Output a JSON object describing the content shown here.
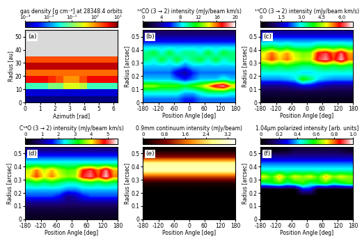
{
  "chart_data": [
    {
      "type": "heatmap",
      "panel_label": "(a)",
      "log": true,
      "colorbar_label": "gas density [g cm⁻²] at 28348.4 orbits",
      "xlabel": "Azimuth [rad]",
      "ylabel": "Radius [au]",
      "xlim": [
        0,
        6.283
      ],
      "ylim": [
        0,
        55
      ],
      "xticks": [
        0,
        1,
        2,
        3,
        4,
        5,
        6
      ],
      "yticks": [
        0,
        10,
        20,
        30,
        40,
        50
      ],
      "clim": [
        0.001,
        10
      ],
      "cticks": [
        {
          "value": 0.001,
          "label": "10⁻³"
        },
        {
          "value": 0.01,
          "label": "10⁻²"
        },
        {
          "value": 0.1,
          "label": "10⁻¹"
        },
        {
          "value": 1,
          "label": "10⁰"
        },
        {
          "value": 10,
          "label": "10¹"
        }
      ],
      "cells": [
        [
          0.001,
          0.001,
          0.001,
          0.001,
          0.001,
          0.001,
          0.001,
          0.001,
          0.001,
          0.001,
          0.001,
          0.001
        ],
        [
          0.002,
          0.002,
          0.002,
          0.002,
          0.002,
          0.002,
          0.002,
          0.002,
          0.002,
          0.002,
          0.002,
          0.002
        ],
        [
          0.05,
          0.05,
          0.05,
          0.1,
          0.1,
          0.3,
          0.3,
          0.2,
          0.05,
          0.05,
          0.05,
          0.05
        ],
        [
          4,
          4,
          4,
          3,
          2,
          1,
          1,
          2,
          4,
          4,
          4,
          4
        ],
        [
          1.5,
          1.5,
          1.5,
          1.5,
          1.5,
          1.5,
          1.5,
          1.5,
          1.5,
          1.5,
          1.5,
          1.5
        ],
        [
          6,
          6,
          6,
          6,
          6,
          6,
          6,
          6,
          6,
          6,
          6,
          6
        ],
        [
          2,
          2,
          2,
          2,
          2,
          2,
          2,
          2,
          2,
          2,
          2,
          2
        ],
        [
          null,
          null,
          null,
          null,
          null,
          null,
          null,
          null,
          null,
          null,
          null,
          null
        ],
        [
          null,
          null,
          null,
          null,
          null,
          null,
          null,
          null,
          null,
          null,
          null,
          null
        ],
        [
          null,
          null,
          null,
          null,
          null,
          null,
          null,
          null,
          null,
          null,
          null,
          null
        ],
        [
          null,
          null,
          null,
          null,
          null,
          null,
          null,
          null,
          null,
          null,
          null,
          null
        ]
      ]
    },
    {
      "type": "heatmap",
      "panel_label": "(b)",
      "colorbar_label": "¹²CO (3 → 2) intensity (mJy/beam km/s)",
      "xlabel": "Position Angle [deg]",
      "ylabel": "Radius [arcsec]",
      "xlim": [
        -180,
        180
      ],
      "ylim": [
        0,
        0.55
      ],
      "xticks": [
        -180,
        -120,
        -60,
        0,
        60,
        120,
        180
      ],
      "yticks": [
        0,
        0.1,
        0.2,
        0.3,
        0.4,
        0.5
      ],
      "clim": [
        0,
        20
      ],
      "cticks": [
        0,
        4,
        8,
        12,
        16,
        20
      ],
      "cells": [
        [
          7,
          7,
          7,
          7,
          7,
          6,
          6,
          7,
          7,
          7,
          7,
          7
        ],
        [
          9,
          9,
          9,
          9,
          9,
          8,
          8,
          9,
          10,
          10,
          10,
          9
        ],
        [
          13,
          13,
          12,
          12,
          12,
          11,
          12,
          13,
          15,
          18,
          19,
          15
        ],
        [
          8,
          8,
          8,
          8,
          7,
          6,
          7,
          8,
          8,
          8,
          9,
          8
        ],
        [
          7,
          7,
          7,
          7,
          5,
          4,
          6,
          7,
          7,
          7,
          7,
          7
        ],
        [
          8,
          8,
          8,
          8,
          8,
          7,
          8,
          8,
          8,
          8,
          8,
          8
        ],
        [
          10,
          9,
          11,
          9,
          11,
          9,
          10,
          11,
          9,
          11,
          9,
          10
        ],
        [
          10,
          11,
          9,
          11,
          9,
          10,
          10,
          9,
          11,
          9,
          11,
          10
        ],
        [
          8,
          8,
          8,
          8,
          8,
          8,
          8,
          8,
          8,
          8,
          8,
          8
        ],
        [
          5,
          5,
          5,
          5,
          5,
          5,
          5,
          5,
          5,
          5,
          5,
          5
        ],
        [
          3,
          3,
          3,
          3,
          3,
          3,
          3,
          3,
          3,
          3,
          3,
          3
        ]
      ]
    },
    {
      "type": "heatmap",
      "panel_label": "(c)",
      "colorbar_label": "¹³CO (3 → 2) intensity (mJy/beam km/s)",
      "xlabel": "Position Angle [deg]",
      "ylabel": "Radius [arcsec]",
      "xlim": [
        -180,
        180
      ],
      "ylim": [
        0,
        0.55
      ],
      "xticks": [
        -180,
        -120,
        -60,
        0,
        60,
        120,
        180
      ],
      "yticks": [
        0,
        0.1,
        0.2,
        0.3,
        0.4,
        0.5
      ],
      "clim": [
        0,
        6.8
      ],
      "cticks": [
        0,
        1.5,
        {
          "value": 3,
          "label": "3.0"
        },
        4.5,
        {
          "value": 6,
          "label": "6.0"
        }
      ],
      "cells": [
        [
          0.3,
          0.3,
          0.3,
          0.3,
          0.3,
          0.3,
          0.3,
          0.3,
          0.3,
          0.3,
          0.3,
          0.3
        ],
        [
          0.6,
          0.6,
          0.6,
          0.6,
          0.6,
          0.6,
          0.6,
          0.6,
          0.6,
          0.6,
          0.6,
          0.6
        ],
        [
          1.2,
          1.2,
          1.2,
          1.3,
          1.5,
          1.8,
          1.8,
          1.5,
          1.3,
          1.2,
          1.2,
          1.2
        ],
        [
          2.5,
          2.5,
          2.5,
          2.6,
          2.8,
          4.0,
          3.5,
          2.8,
          2.6,
          2.5,
          2.5,
          2.5
        ],
        [
          3.0,
          3.0,
          3.0,
          3.0,
          3.0,
          2.8,
          2.8,
          3.0,
          3.0,
          3.0,
          3.0,
          3.0
        ],
        [
          3.6,
          3.8,
          3.6,
          3.8,
          3.6,
          3.4,
          3.4,
          3.6,
          3.8,
          3.6,
          3.8,
          3.6
        ],
        [
          5.0,
          5.6,
          5.0,
          5.4,
          4.8,
          4.5,
          4.6,
          6.0,
          6.4,
          5.6,
          6.5,
          5.4
        ],
        [
          4.8,
          5.4,
          4.8,
          5.2,
          4.6,
          4.3,
          4.4,
          5.8,
          6.1,
          5.4,
          6.2,
          5.2
        ],
        [
          3.4,
          3.6,
          3.3,
          3.5,
          3.2,
          3.2,
          3.2,
          3.6,
          3.6,
          3.5,
          3.6,
          3.4
        ],
        [
          2.4,
          2.4,
          2.4,
          2.4,
          2.4,
          2.4,
          2.4,
          2.4,
          2.4,
          2.4,
          2.4,
          2.4
        ],
        [
          1.4,
          1.4,
          1.4,
          1.4,
          1.4,
          1.4,
          1.4,
          1.4,
          1.4,
          1.4,
          1.4,
          1.4
        ]
      ]
    },
    {
      "type": "heatmap",
      "panel_label": "(d)",
      "colorbar_label": "C¹⁸O (3 → 2) intensity (mJy/beam km/s)",
      "xlabel": "Position Angle [deg]",
      "ylabel": "Radius [arcsec]",
      "xlim": [
        -180,
        180
      ],
      "ylim": [
        0,
        0.55
      ],
      "xticks": [
        -180,
        -120,
        -60,
        0,
        60,
        120,
        180
      ],
      "yticks": [
        0,
        0.1,
        0.2,
        0.3,
        0.4,
        0.5
      ],
      "clim": [
        0,
        5.6
      ],
      "cticks": [
        0,
        1,
        2,
        3,
        4,
        5
      ],
      "cells": [
        [
          0.3,
          0.3,
          0.3,
          0.3,
          0.3,
          0.3,
          0.3,
          0.3,
          0.3,
          0.3,
          0.3,
          0.3
        ],
        [
          0.5,
          0.5,
          0.5,
          0.5,
          0.5,
          0.5,
          0.5,
          0.5,
          0.5,
          0.5,
          0.5,
          0.5
        ],
        [
          1.0,
          1.0,
          1.0,
          1.0,
          1.0,
          0.9,
          0.9,
          1.0,
          1.0,
          1.0,
          1.0,
          1.0
        ],
        [
          1.8,
          1.8,
          1.8,
          1.8,
          1.6,
          1.0,
          1.2,
          1.6,
          1.8,
          1.8,
          1.8,
          1.8
        ],
        [
          2.2,
          2.2,
          2.2,
          2.2,
          2.2,
          2.0,
          2.0,
          2.2,
          2.2,
          2.2,
          2.2,
          2.2
        ],
        [
          2.8,
          3.0,
          2.8,
          3.0,
          2.8,
          2.6,
          2.6,
          2.8,
          3.0,
          2.8,
          3.0,
          2.8
        ],
        [
          4.0,
          4.6,
          4.0,
          4.4,
          3.9,
          3.6,
          3.7,
          4.9,
          5.2,
          4.6,
          5.4,
          4.4
        ],
        [
          3.8,
          4.4,
          3.8,
          4.2,
          3.7,
          3.4,
          3.5,
          4.7,
          5.0,
          4.4,
          5.2,
          4.2
        ],
        [
          2.6,
          2.6,
          2.6,
          2.6,
          2.6,
          2.6,
          2.6,
          2.6,
          2.6,
          2.6,
          2.6,
          2.6
        ],
        [
          1.8,
          1.8,
          1.8,
          1.8,
          1.8,
          1.8,
          1.8,
          1.8,
          1.8,
          1.8,
          1.8,
          1.8
        ],
        [
          1.0,
          1.0,
          1.0,
          1.0,
          1.0,
          1.0,
          1.0,
          1.0,
          1.0,
          1.0,
          1.0,
          1.0
        ]
      ]
    },
    {
      "type": "heatmap",
      "panel_label": "(e)",
      "colorbar_label": "0.9mm continuum intensity (mJy/beam)",
      "xlabel": "Position Angle [deg]",
      "ylabel": "Radius [arcsec]",
      "xlim": [
        -180,
        180
      ],
      "ylim": [
        0,
        0.55
      ],
      "xticks": [
        -180,
        -120,
        -60,
        0,
        60,
        120,
        180
      ],
      "yticks": [
        0,
        0.1,
        0.2,
        0.3,
        0.4,
        0.5
      ],
      "clim": [
        0,
        3.5
      ],
      "cticks": [
        0,
        0.8,
        1.6,
        2.4,
        3.2
      ],
      "cells": [
        [
          0,
          0,
          0,
          0,
          0,
          0,
          0,
          0,
          0,
          0,
          0,
          0
        ],
        [
          0,
          0,
          0,
          0,
          0,
          0,
          0,
          0,
          0,
          0,
          0,
          0
        ],
        [
          0,
          0,
          0,
          0,
          0,
          0,
          0,
          0,
          0,
          0,
          0,
          0
        ],
        [
          0,
          0,
          0,
          0,
          0,
          0,
          0,
          0,
          0,
          0,
          0,
          0
        ],
        [
          0.02,
          0.02,
          0.02,
          0.02,
          0.02,
          0.02,
          0.02,
          0.02,
          0.02,
          0.02,
          0.02,
          0.02
        ],
        [
          0.2,
          0.2,
          0.2,
          0.2,
          0.2,
          0.2,
          0.2,
          0.2,
          0.2,
          0.2,
          0.2,
          0.2
        ],
        [
          1.4,
          1.4,
          1.4,
          1.4,
          1.4,
          1.4,
          1.4,
          1.4,
          1.4,
          1.4,
          1.4,
          1.4
        ],
        [
          3.0,
          3.0,
          3.0,
          3.0,
          3.0,
          3.0,
          3.0,
          3.0,
          3.0,
          3.0,
          3.0,
          3.0
        ],
        [
          2.8,
          2.8,
          2.8,
          2.8,
          2.8,
          2.8,
          2.8,
          2.8,
          2.8,
          2.8,
          2.8,
          2.8
        ],
        [
          0.9,
          0.9,
          0.9,
          0.9,
          0.9,
          0.9,
          0.9,
          0.9,
          0.9,
          0.9,
          0.9,
          0.9
        ],
        [
          0.1,
          0.1,
          0.1,
          0.1,
          0.1,
          0.1,
          0.1,
          0.1,
          0.1,
          0.1,
          0.1,
          0.1
        ]
      ]
    },
    {
      "type": "heatmap",
      "panel_label": "(f)",
      "colorbar_label": "1.04μm polarized intensity [arb. units]",
      "xlabel": "Position Angle [deg]",
      "ylabel": "Radius [arcsec]",
      "xlim": [
        -180,
        180
      ],
      "ylim": [
        0,
        0.55
      ],
      "xticks": [
        -180,
        -120,
        -60,
        0,
        60,
        120,
        180
      ],
      "yticks": [
        0,
        0.1,
        0.2,
        0.3,
        0.4,
        0.5
      ],
      "clim": [
        0,
        1
      ],
      "cticks": [
        0,
        0.2,
        0.4,
        0.6,
        0.8,
        {
          "value": 1,
          "label": "1.0"
        }
      ],
      "cells": [
        [
          0,
          0,
          0,
          0,
          0,
          0,
          0,
          0,
          0,
          0,
          0,
          0
        ],
        [
          0,
          0,
          0,
          0,
          0,
          0,
          0,
          0,
          0,
          0,
          0,
          0
        ],
        [
          0,
          0,
          0,
          0,
          0,
          0,
          0,
          0,
          0,
          0,
          0,
          0
        ],
        [
          0,
          0,
          0,
          0,
          0,
          0,
          0,
          0,
          0,
          0,
          0,
          0
        ],
        [
          0,
          0,
          0,
          0,
          0,
          0.25,
          0.25,
          0,
          0,
          0,
          0,
          0
        ],
        [
          0.5,
          0.55,
          0.6,
          0.5,
          0.55,
          0.6,
          0.5,
          0.55,
          0.6,
          0.5,
          0.55,
          0.6
        ],
        [
          0.7,
          0.6,
          0.75,
          0.6,
          0.7,
          0.65,
          0.7,
          0.6,
          0.75,
          0.65,
          0.7,
          0.65
        ],
        [
          0.45,
          0.45,
          0.45,
          0.45,
          0.45,
          0.45,
          0.45,
          0.45,
          0.45,
          0.45,
          0.45,
          0.45
        ],
        [
          0.35,
          0.35,
          0.35,
          0.35,
          0.35,
          0.35,
          0.35,
          0.35,
          0.35,
          0.35,
          0.35,
          0.35
        ],
        [
          0.2,
          0.2,
          0.2,
          0.2,
          0.2,
          0.2,
          0.2,
          0.2,
          0.2,
          0.2,
          0.2,
          0.2
        ],
        [
          0.02,
          0.02,
          0.03,
          0.05,
          0.1,
          0.1,
          0.1,
          0.1,
          0.1,
          0.1,
          0.08,
          0.05
        ]
      ]
    }
  ]
}
